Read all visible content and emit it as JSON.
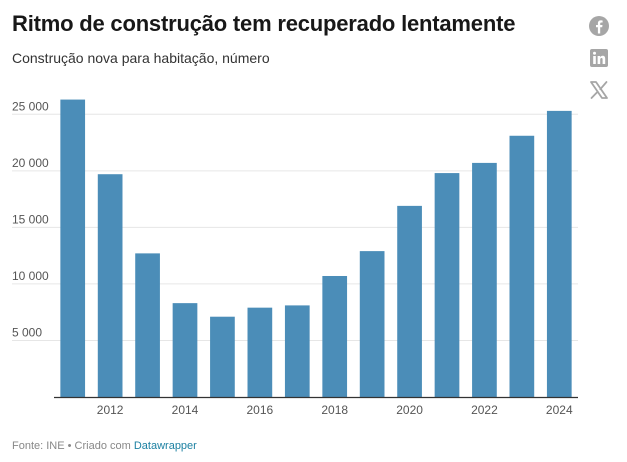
{
  "header": {
    "title": "Ritmo de construção tem recuperado lentamente",
    "subtitle": "Construção nova para habitação, número"
  },
  "share": {
    "facebook_icon": "facebook-icon",
    "linkedin_icon": "linkedin-icon",
    "x_icon": "x-twitter-icon",
    "icon_color": "#a6a6a6"
  },
  "footer": {
    "source_text": "Fonte: INE • Criado com",
    "credit_link": "Datawrapper"
  },
  "colors": {
    "bar": "#4b8db8",
    "grid": "#e6e6e6",
    "axis": "#333333"
  },
  "chart_data": {
    "type": "bar",
    "title": "Ritmo de construção tem recuperado lentamente",
    "subtitle": "Construção nova para habitação, número",
    "xlabel": "",
    "ylabel": "",
    "categories": [
      2011,
      2012,
      2013,
      2014,
      2015,
      2016,
      2017,
      2018,
      2019,
      2020,
      2021,
      2022,
      2023,
      2024
    ],
    "values": [
      26300,
      19700,
      12700,
      8300,
      7100,
      7900,
      8100,
      10700,
      12900,
      16900,
      19800,
      20700,
      23100,
      25300
    ],
    "ylim": [
      0,
      27500
    ],
    "y_ticks": [
      5000,
      10000,
      15000,
      20000,
      25000
    ],
    "y_tick_labels": [
      "5 000",
      "10 000",
      "15 000",
      "20 000",
      "25 000"
    ],
    "x_tick_labels": [
      "2012",
      "2014",
      "2016",
      "2018",
      "2020",
      "2022",
      "2024"
    ],
    "grid": true,
    "legend": "none"
  }
}
